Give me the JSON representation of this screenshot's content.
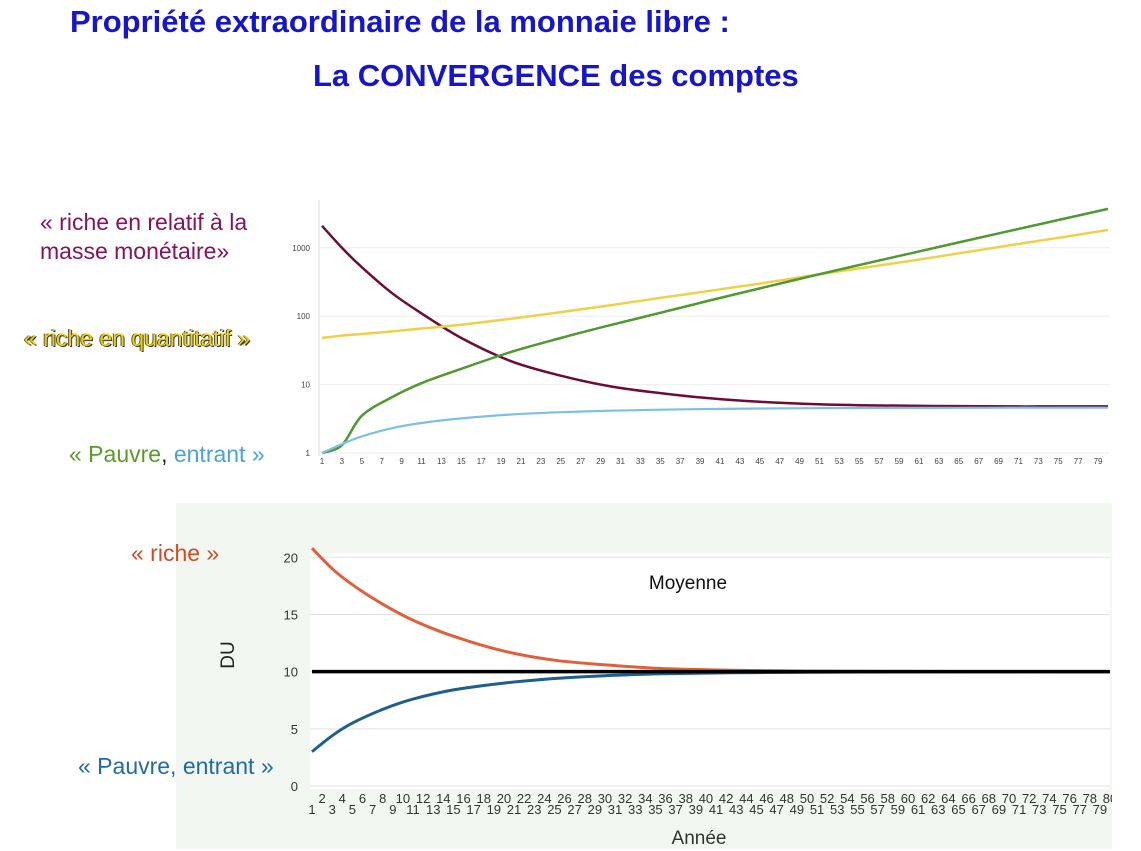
{
  "slide": {
    "title_line1": "Propriété extraordinaire de la monnaie libre :",
    "title_line2": "La CONVERGENCE des comptes"
  },
  "labels": {
    "rich_relative_1": "« riche en relatif à la",
    "rich_relative_2": "masse monétaire»",
    "rich_quantitative": "« riche en quantitatif »",
    "poor_entering_a": "« Pauvre",
    "poor_entering_comma": ",",
    "poor_entering_b": "entrant »",
    "rich": "« riche »",
    "poor_entering": "« Pauvre, entrant »"
  },
  "colors": {
    "title": "#1515d0",
    "purple_series": "#6e0c36",
    "yellow_series": "#f0d048",
    "green_series": "#4f9a30",
    "lightblue_series": "#7cc0e6",
    "red_series": "#e0603c",
    "navy_series": "#1f5f8b",
    "mean_line": "#000000"
  },
  "chart_data": [
    {
      "type": "line",
      "yscale": "log",
      "ylim": [
        1,
        5000
      ],
      "yticks": [
        "1",
        "10",
        "100",
        "1000"
      ],
      "x_labels": [
        "1",
        "3",
        "5",
        "7",
        "9",
        "11",
        "13",
        "15",
        "17",
        "19",
        "21",
        "23",
        "25",
        "27",
        "29",
        "31",
        "33",
        "35",
        "37",
        "39",
        "41",
        "43",
        "45",
        "47",
        "49",
        "51",
        "53",
        "55",
        "57",
        "59",
        "61",
        "63",
        "65",
        "67",
        "69",
        "71",
        "73",
        "75",
        "77",
        "79"
      ],
      "x": [
        1,
        3,
        5,
        8,
        11,
        15,
        20,
        25,
        30,
        35,
        40,
        45,
        50,
        55,
        60,
        65,
        70,
        75,
        80
      ],
      "series": [
        {
          "key": "purple",
          "values": [
            2100,
            1000,
            520,
            220,
            110,
            48,
            22,
            13.5,
            9.4,
            7.5,
            6.3,
            5.6,
            5.2,
            5.0,
            4.9,
            4.85,
            4.8,
            4.8,
            4.8
          ]
        },
        {
          "key": "yellow",
          "values": [
            48,
            52,
            55,
            60,
            66,
            75,
            92,
            115,
            145,
            185,
            235,
            300,
            390,
            500,
            640,
            830,
            1080,
            1400,
            1820
          ]
        },
        {
          "key": "green",
          "values": [
            1,
            1.3,
            3.5,
            6.5,
            10.5,
            17,
            30,
            48,
            74,
            112,
            170,
            255,
            380,
            560,
            820,
            1200,
            1750,
            2550,
            3700
          ]
        },
        {
          "key": "lightblue",
          "values": [
            1,
            1.35,
            1.75,
            2.3,
            2.75,
            3.2,
            3.65,
            3.95,
            4.15,
            4.3,
            4.4,
            4.48,
            4.52,
            4.55,
            4.57,
            4.58,
            4.6,
            4.6,
            4.6
          ]
        }
      ]
    },
    {
      "type": "line",
      "ylim": [
        0,
        23
      ],
      "yticks": [
        "0",
        "5",
        "10",
        "15",
        "20"
      ],
      "ylabel": "DU",
      "xlabel": "Année",
      "annotation": "Moyenne",
      "x_even_labels": [
        "2",
        "4",
        "6",
        "8",
        "10",
        "12",
        "14",
        "16",
        "18",
        "20",
        "22",
        "24",
        "26",
        "28",
        "30",
        "32",
        "34",
        "36",
        "38",
        "40",
        "42",
        "44",
        "46",
        "48",
        "50",
        "52",
        "54",
        "56",
        "58",
        "60",
        "62",
        "64",
        "66",
        "68",
        "70",
        "72",
        "74",
        "76",
        "78",
        "80"
      ],
      "x_odd_labels": [
        "1",
        "3",
        "5",
        "7",
        "9",
        "11",
        "13",
        "15",
        "17",
        "19",
        "21",
        "23",
        "25",
        "27",
        "29",
        "31",
        "33",
        "35",
        "37",
        "39",
        "41",
        "43",
        "45",
        "47",
        "49",
        "51",
        "53",
        "55",
        "57",
        "59",
        "61",
        "63",
        "65",
        "67",
        "69",
        "71",
        "73",
        "75",
        "77",
        "79"
      ],
      "x": [
        1,
        3,
        5,
        8,
        11,
        15,
        20,
        25,
        30,
        35,
        40,
        45,
        50,
        55,
        60,
        65,
        70,
        75,
        80
      ],
      "series": [
        {
          "key": "red",
          "values": [
            20.8,
            19.0,
            17.6,
            15.9,
            14.5,
            13.1,
            11.8,
            11.0,
            10.6,
            10.3,
            10.17,
            10.09,
            10.05,
            10.03,
            10.02,
            10.01,
            10.0,
            10.0,
            10.0
          ]
        },
        {
          "key": "navy",
          "values": [
            3.0,
            4.4,
            5.5,
            6.7,
            7.6,
            8.4,
            9.0,
            9.4,
            9.65,
            9.8,
            9.87,
            9.92,
            9.95,
            9.97,
            9.98,
            9.99,
            10.0,
            10.0,
            10.0
          ]
        },
        {
          "key": "mean",
          "values": [
            10,
            10,
            10,
            10,
            10,
            10,
            10,
            10,
            10,
            10,
            10,
            10,
            10,
            10,
            10,
            10,
            10,
            10,
            10
          ]
        }
      ]
    }
  ]
}
